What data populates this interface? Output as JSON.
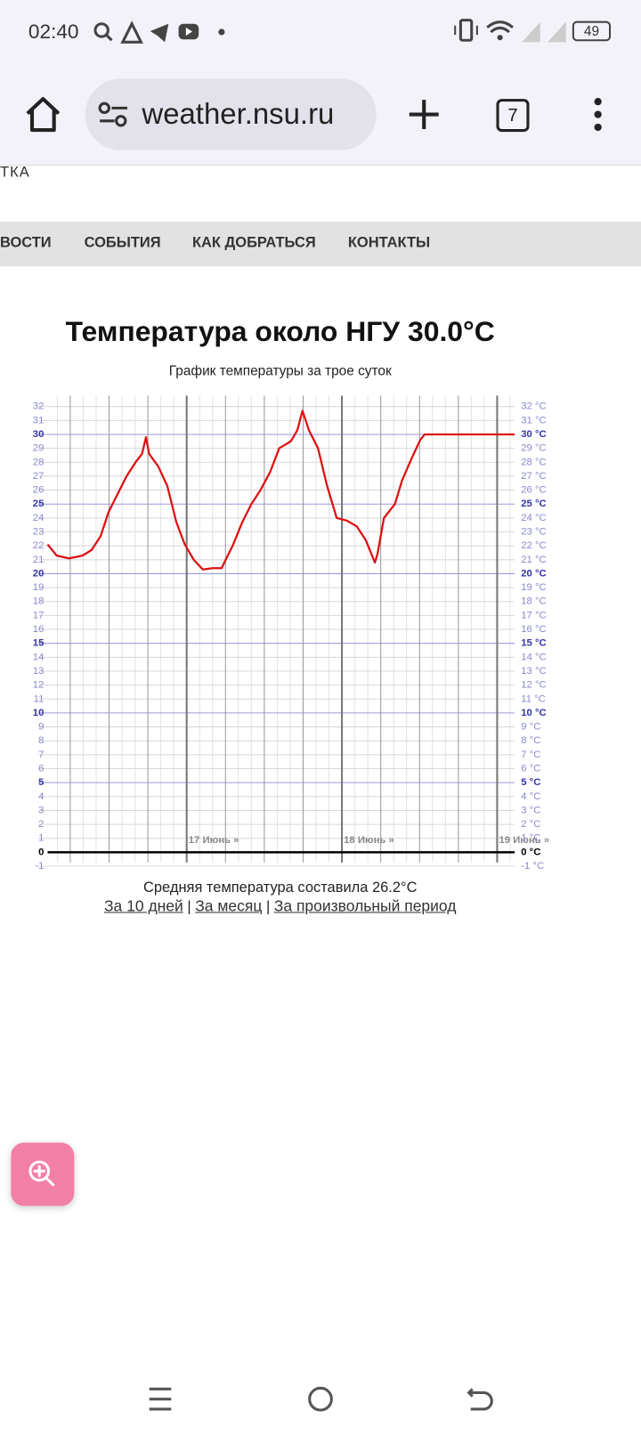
{
  "status_bar": {
    "time": "02:40",
    "battery": "49"
  },
  "browser": {
    "url": "weather.nsu.ru",
    "tabs": "7"
  },
  "site": {
    "header_fragment": "ТКА",
    "nav": [
      "ВОСТИ",
      "СОБЫТИЯ",
      "КАК ДОБРАТЬСЯ",
      "КОНТАКТЫ"
    ]
  },
  "chart_data": {
    "type": "line",
    "title": "Температура около НГУ 30.0°C",
    "subtitle": "График температуры за трое суток",
    "xlim": [
      2.5,
      74.7
    ],
    "xticks": [
      {
        "value": 24,
        "label": "17 Июнь »"
      },
      {
        "value": 48,
        "label": "18 Июнь »"
      },
      {
        "value": 72,
        "label": "19 Июнь »"
      }
    ],
    "x_grid": [
      6,
      12,
      18,
      30,
      36,
      42,
      54,
      60,
      66
    ],
    "x_fine_grid": [
      4,
      8,
      10,
      14,
      16,
      20,
      22,
      26,
      28,
      32,
      34,
      38,
      40,
      44,
      46,
      50,
      52,
      56,
      58,
      62,
      64,
      68,
      70,
      74
    ],
    "ylim": [
      -1,
      32
    ],
    "yticks": [
      -1,
      0,
      1,
      2,
      3,
      4,
      5,
      6,
      7,
      8,
      9,
      10,
      11,
      12,
      13,
      14,
      15,
      16,
      17,
      18,
      19,
      20,
      21,
      22,
      23,
      24,
      25,
      26,
      27,
      28,
      29,
      30,
      31,
      32
    ],
    "y2lim": [
      -1,
      32
    ],
    "y2ticks": [
      {
        "value": -1,
        "label": "-1 °C"
      },
      {
        "value": 0,
        "label": "0 °C"
      },
      {
        "value": 1,
        "label": "1 °C"
      },
      {
        "value": 2,
        "label": "2 °C"
      },
      {
        "value": 3,
        "label": "3 °C"
      },
      {
        "value": 4,
        "label": "4 °C"
      },
      {
        "value": 5,
        "label": "5 °C"
      },
      {
        "value": 6,
        "label": "6 °C"
      },
      {
        "value": 7,
        "label": "7 °C"
      },
      {
        "value": 8,
        "label": "8 °C"
      },
      {
        "value": 9,
        "label": "9 °C"
      },
      {
        "value": 10,
        "label": "10 °C"
      },
      {
        "value": 11,
        "label": "11 °C"
      },
      {
        "value": 12,
        "label": "12 °C"
      },
      {
        "value": 13,
        "label": "13 °C"
      },
      {
        "value": 14,
        "label": "14 °C"
      },
      {
        "value": 15,
        "label": "15 °C"
      },
      {
        "value": 16,
        "label": "16 °C"
      },
      {
        "value": 17,
        "label": "17 °C"
      },
      {
        "value": 18,
        "label": "18 °C"
      },
      {
        "value": 19,
        "label": "19 °C"
      },
      {
        "value": 20,
        "label": "20 °C"
      },
      {
        "value": 21,
        "label": "21 °C"
      },
      {
        "value": 22,
        "label": "22 °C"
      },
      {
        "value": 23,
        "label": "23 °C"
      },
      {
        "value": 24,
        "label": "24 °C"
      },
      {
        "value": 25,
        "label": "25 °C"
      },
      {
        "value": 26,
        "label": "26 °C"
      },
      {
        "value": 27,
        "label": "27 °C"
      },
      {
        "value": 28,
        "label": "28 °C"
      },
      {
        "value": 29,
        "label": "29 °C"
      },
      {
        "value": 30,
        "label": "30 °C"
      },
      {
        "value": 31,
        "label": "31 °C"
      },
      {
        "value": 32,
        "label": "32 °C"
      }
    ],
    "x": [
      2.5,
      3.9,
      5.8,
      7.9,
      9.3,
      10.7,
      11.9,
      13.3,
      14.7,
      16.1,
      17.1,
      17.7,
      18.2,
      19.6,
      21.0,
      22.4,
      23.7,
      25.1,
      26.5,
      28.0,
      29.4,
      31.2,
      32.6,
      34.0,
      35.4,
      36.9,
      38.3,
      40.1,
      41.1,
      41.9,
      42.9,
      44.3,
      45.7,
      47.2,
      48.8,
      50.3,
      51.7,
      53.1,
      53.5,
      54.5,
      56.2,
      57.3,
      58.8,
      60.1,
      60.8,
      63.0,
      74.7
    ],
    "series": [
      {
        "color": "#dd1111",
        "values": [
          22.1,
          21.3,
          21.1,
          21.3,
          21.7,
          22.7,
          24.4,
          25.7,
          27.0,
          28.0,
          28.6,
          29.8,
          28.6,
          27.7,
          26.3,
          23.7,
          22.1,
          21.0,
          20.3,
          20.4,
          20.4,
          22.1,
          23.7,
          25.0,
          26.0,
          27.3,
          29.0,
          29.5,
          30.3,
          31.7,
          30.3,
          29.0,
          26.3,
          24.0,
          23.8,
          23.4,
          22.4,
          20.8,
          21.4,
          24.0,
          25.0,
          26.7,
          28.3,
          29.6,
          30.0,
          30.0,
          30.0
        ]
      }
    ],
    "grid": true
  },
  "footer": {
    "average": "Средняя температура составила 26.2°C",
    "links": [
      "За 10 дней",
      "За месяц",
      "За произвольный период"
    ],
    "separator": "|"
  }
}
